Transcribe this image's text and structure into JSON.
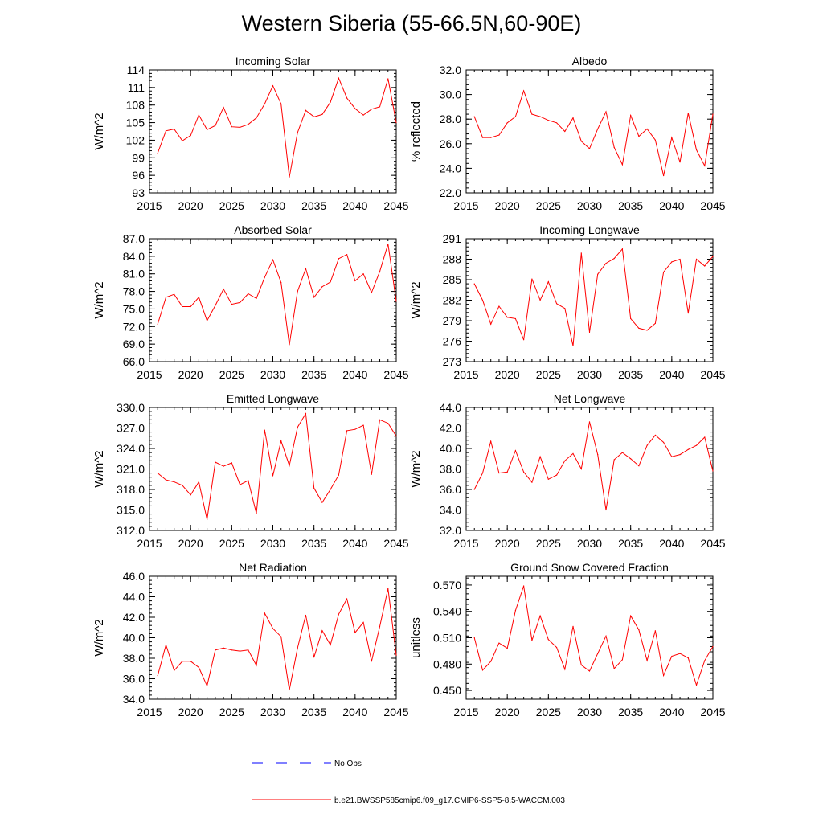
{
  "title": "Western Siberia (55-66.5N,60-90E)",
  "colors": {
    "series": "#ff0000",
    "obs": "#0000ff",
    "axis": "#000000"
  },
  "legend": [
    {
      "label": "No Obs",
      "style": "dashed",
      "color": "#0000ff"
    },
    {
      "label": "b.e21.BWSSP585cmip6.f09_g17.CMIP6-SSP5-8.5-WACCM.003",
      "style": "solid",
      "color": "#ff0000"
    }
  ],
  "chart_data": [
    {
      "type": "line",
      "id": "incoming-solar",
      "title": "Incoming Solar",
      "xlabel": "",
      "ylabel": "W/m^2",
      "xlim": [
        2015,
        2045
      ],
      "ylim": [
        93,
        114
      ],
      "xticks": [
        2015,
        2020,
        2025,
        2030,
        2035,
        2040,
        2045
      ],
      "yticks": [
        "93",
        "96",
        "99",
        "102",
        "105",
        "108",
        "111",
        "114"
      ],
      "x": [
        2016,
        2017,
        2018,
        2019,
        2020,
        2021,
        2022,
        2023,
        2024,
        2025,
        2026,
        2027,
        2028,
        2029,
        2030,
        2031,
        2032,
        2033,
        2034,
        2035,
        2036,
        2037,
        2038,
        2039,
        2040,
        2041,
        2042,
        2043,
        2044,
        2045
      ],
      "series": [
        {
          "name": "b.e21.BWSSP585cmip6.f09_g17.CMIP6-SSP5-8.5-WACCM.003",
          "values": [
            99.8,
            103.6,
            103.9,
            101.9,
            102.8,
            106.3,
            103.8,
            104.5,
            107.6,
            104.3,
            104.2,
            104.7,
            105.8,
            108.2,
            111.3,
            108.2,
            95.7,
            103.3,
            107.1,
            106.0,
            106.4,
            108.5,
            112.6,
            109.2,
            107.4,
            106.3,
            107.3,
            107.7,
            112.5,
            105.0
          ]
        }
      ]
    },
    {
      "type": "line",
      "id": "albedo",
      "title": "Albedo",
      "xlabel": "",
      "ylabel": "% reflected",
      "xlim": [
        2015,
        2045
      ],
      "ylim": [
        22,
        32
      ],
      "xticks": [
        2015,
        2020,
        2025,
        2030,
        2035,
        2040,
        2045
      ],
      "yticks": [
        "22.0",
        "24.0",
        "26.0",
        "28.0",
        "30.0",
        "32.0"
      ],
      "x": [
        2016,
        2017,
        2018,
        2019,
        2020,
        2021,
        2022,
        2023,
        2024,
        2025,
        2026,
        2027,
        2028,
        2029,
        2030,
        2031,
        2032,
        2033,
        2034,
        2035,
        2036,
        2037,
        2038,
        2039,
        2040,
        2041,
        2042,
        2043,
        2044,
        2045
      ],
      "series": [
        {
          "name": "b.e21.BWSSP585cmip6.f09_g17.CMIP6-SSP5-8.5-WACCM.003",
          "values": [
            28.2,
            26.5,
            26.5,
            26.7,
            27.7,
            28.2,
            30.3,
            28.4,
            28.2,
            27.9,
            27.7,
            27.0,
            28.1,
            26.2,
            25.6,
            27.2,
            28.6,
            25.7,
            24.3,
            28.3,
            26.6,
            27.2,
            26.3,
            23.4,
            26.5,
            24.5,
            28.5,
            25.5,
            24.2,
            28.4
          ]
        }
      ]
    },
    {
      "type": "line",
      "id": "absorbed-solar",
      "title": "Absorbed Solar",
      "xlabel": "",
      "ylabel": "W/m^2",
      "xlim": [
        2015,
        2045
      ],
      "ylim": [
        66,
        87
      ],
      "xticks": [
        2015,
        2020,
        2025,
        2030,
        2035,
        2040,
        2045
      ],
      "yticks": [
        "66.0",
        "69.0",
        "72.0",
        "75.0",
        "78.0",
        "81.0",
        "84.0",
        "87.0"
      ],
      "x": [
        2016,
        2017,
        2018,
        2019,
        2020,
        2021,
        2022,
        2023,
        2024,
        2025,
        2026,
        2027,
        2028,
        2029,
        2030,
        2031,
        2032,
        2033,
        2034,
        2035,
        2036,
        2037,
        2038,
        2039,
        2040,
        2041,
        2042,
        2043,
        2044,
        2045
      ],
      "series": [
        {
          "name": "b.e21.BWSSP585cmip6.f09_g17.CMIP6-SSP5-8.5-WACCM.003",
          "values": [
            72.4,
            77.0,
            77.5,
            75.4,
            75.4,
            77.0,
            73.0,
            75.6,
            78.4,
            75.8,
            76.1,
            77.6,
            76.8,
            80.4,
            83.4,
            79.5,
            68.9,
            78.0,
            81.9,
            77.0,
            78.8,
            79.6,
            83.6,
            84.3,
            79.8,
            81.0,
            77.8,
            81.4,
            86.1,
            76.3
          ]
        }
      ]
    },
    {
      "type": "line",
      "id": "incoming-longwave",
      "title": "Incoming Longwave",
      "xlabel": "",
      "ylabel": "W/m^2",
      "xlim": [
        2015,
        2045
      ],
      "ylim": [
        273,
        291
      ],
      "xticks": [
        2015,
        2020,
        2025,
        2030,
        2035,
        2040,
        2045
      ],
      "yticks": [
        "273",
        "276",
        "279",
        "282",
        "285",
        "288",
        "291"
      ],
      "x": [
        2016,
        2017,
        2018,
        2019,
        2020,
        2021,
        2022,
        2023,
        2024,
        2025,
        2026,
        2027,
        2028,
        2029,
        2030,
        2031,
        2032,
        2033,
        2034,
        2035,
        2036,
        2037,
        2038,
        2039,
        2040,
        2041,
        2042,
        2043,
        2044,
        2045
      ],
      "series": [
        {
          "name": "b.e21.BWSSP585cmip6.f09_g17.CMIP6-SSP5-8.5-WACCM.003",
          "values": [
            284.4,
            282.0,
            278.5,
            281.1,
            279.5,
            279.3,
            276.2,
            285.1,
            282.0,
            284.7,
            281.5,
            280.8,
            275.3,
            288.9,
            277.3,
            285.8,
            287.4,
            288.1,
            289.5,
            279.3,
            277.9,
            277.6,
            278.6,
            286.1,
            287.6,
            288.0,
            280.1,
            288.0,
            287.0,
            288.4
          ]
        }
      ]
    },
    {
      "type": "line",
      "id": "emitted-longwave",
      "title": "Emitted Longwave",
      "xlabel": "",
      "ylabel": "W/m^2",
      "xlim": [
        2015,
        2045
      ],
      "ylim": [
        312,
        330
      ],
      "xticks": [
        2015,
        2020,
        2025,
        2030,
        2035,
        2040,
        2045
      ],
      "yticks": [
        "312.0",
        "315.0",
        "318.0",
        "321.0",
        "324.0",
        "327.0",
        "330.0"
      ],
      "x": [
        2016,
        2017,
        2018,
        2019,
        2020,
        2021,
        2022,
        2023,
        2024,
        2025,
        2026,
        2027,
        2028,
        2029,
        2030,
        2031,
        2032,
        2033,
        2034,
        2035,
        2036,
        2037,
        2038,
        2039,
        2040,
        2041,
        2042,
        2043,
        2044,
        2045
      ],
      "series": [
        {
          "name": "b.e21.BWSSP585cmip6.f09_g17.CMIP6-SSP5-8.5-WACCM.003",
          "values": [
            320.4,
            319.4,
            319.1,
            318.6,
            317.2,
            319.1,
            313.6,
            322.0,
            321.4,
            321.9,
            318.7,
            319.3,
            314.5,
            326.7,
            320.0,
            325.1,
            321.5,
            327.1,
            329.1,
            318.2,
            316.1,
            318.0,
            320.1,
            326.6,
            326.8,
            327.4,
            320.2,
            328.2,
            327.7,
            325.8
          ]
        }
      ]
    },
    {
      "type": "line",
      "id": "net-longwave",
      "title": "Net Longwave",
      "xlabel": "",
      "ylabel": "W/m^2",
      "xlim": [
        2015,
        2045
      ],
      "ylim": [
        32,
        44
      ],
      "xticks": [
        2015,
        2020,
        2025,
        2030,
        2035,
        2040,
        2045
      ],
      "yticks": [
        "32.0",
        "34.0",
        "36.0",
        "38.0",
        "40.0",
        "42.0",
        "44.0"
      ],
      "x": [
        2016,
        2017,
        2018,
        2019,
        2020,
        2021,
        2022,
        2023,
        2024,
        2025,
        2026,
        2027,
        2028,
        2029,
        2030,
        2031,
        2032,
        2033,
        2034,
        2035,
        2036,
        2037,
        2038,
        2039,
        2040,
        2041,
        2042,
        2043,
        2044,
        2045
      ],
      "series": [
        {
          "name": "b.e21.BWSSP585cmip6.f09_g17.CMIP6-SSP5-8.5-WACCM.003",
          "values": [
            36.0,
            37.6,
            40.7,
            37.6,
            37.7,
            39.8,
            37.7,
            36.7,
            39.2,
            37.0,
            37.4,
            38.8,
            39.5,
            38.0,
            42.6,
            39.4,
            34.0,
            38.9,
            39.6,
            39.0,
            38.3,
            40.3,
            41.3,
            40.6,
            39.2,
            39.4,
            39.9,
            40.3,
            41.1,
            37.8
          ]
        }
      ]
    },
    {
      "type": "line",
      "id": "net-radiation",
      "title": "Net Radiation",
      "xlabel": "",
      "ylabel": "W/m^2",
      "xlim": [
        2015,
        2045
      ],
      "ylim": [
        34,
        46
      ],
      "xticks": [
        2015,
        2020,
        2025,
        2030,
        2035,
        2040,
        2045
      ],
      "yticks": [
        "34.0",
        "36.0",
        "38.0",
        "40.0",
        "42.0",
        "44.0",
        "46.0"
      ],
      "x": [
        2016,
        2017,
        2018,
        2019,
        2020,
        2021,
        2022,
        2023,
        2024,
        2025,
        2026,
        2027,
        2028,
        2029,
        2030,
        2031,
        2032,
        2033,
        2034,
        2035,
        2036,
        2037,
        2038,
        2039,
        2040,
        2041,
        2042,
        2043,
        2044,
        2045
      ],
      "series": [
        {
          "name": "b.e21.BWSSP585cmip6.f09_g17.CMIP6-SSP5-8.5-WACCM.003",
          "values": [
            36.3,
            39.3,
            36.8,
            37.7,
            37.7,
            37.1,
            35.3,
            38.8,
            39.0,
            38.8,
            38.7,
            38.8,
            37.3,
            42.4,
            40.9,
            40.1,
            34.9,
            39.0,
            42.2,
            38.1,
            40.7,
            39.3,
            42.3,
            43.8,
            40.5,
            41.5,
            37.7,
            41.1,
            44.8,
            38.3
          ]
        }
      ]
    },
    {
      "type": "line",
      "id": "ground-snow-covered-fraction",
      "title": "Ground Snow Covered Fraction",
      "xlabel": "",
      "ylabel": "unitless",
      "xlim": [
        2015,
        2045
      ],
      "ylim": [
        0.44,
        0.58
      ],
      "xticks": [
        2015,
        2020,
        2025,
        2030,
        2035,
        2040,
        2045
      ],
      "yticks": [
        "0.450",
        "0.480",
        "0.510",
        "0.540",
        "0.570"
      ],
      "x": [
        2016,
        2017,
        2018,
        2019,
        2020,
        2021,
        2022,
        2023,
        2024,
        2025,
        2026,
        2027,
        2028,
        2029,
        2030,
        2031,
        2032,
        2033,
        2034,
        2035,
        2036,
        2037,
        2038,
        2039,
        2040,
        2041,
        2042,
        2043,
        2044,
        2045
      ],
      "series": [
        {
          "name": "b.e21.BWSSP585cmip6.f09_g17.CMIP6-SSP5-8.5-WACCM.003",
          "values": [
            0.51,
            0.473,
            0.483,
            0.504,
            0.498,
            0.541,
            0.569,
            0.507,
            0.535,
            0.508,
            0.499,
            0.474,
            0.523,
            0.479,
            0.472,
            0.492,
            0.512,
            0.475,
            0.485,
            0.535,
            0.519,
            0.484,
            0.518,
            0.467,
            0.489,
            0.492,
            0.487,
            0.456,
            0.484,
            0.5
          ]
        }
      ]
    }
  ]
}
